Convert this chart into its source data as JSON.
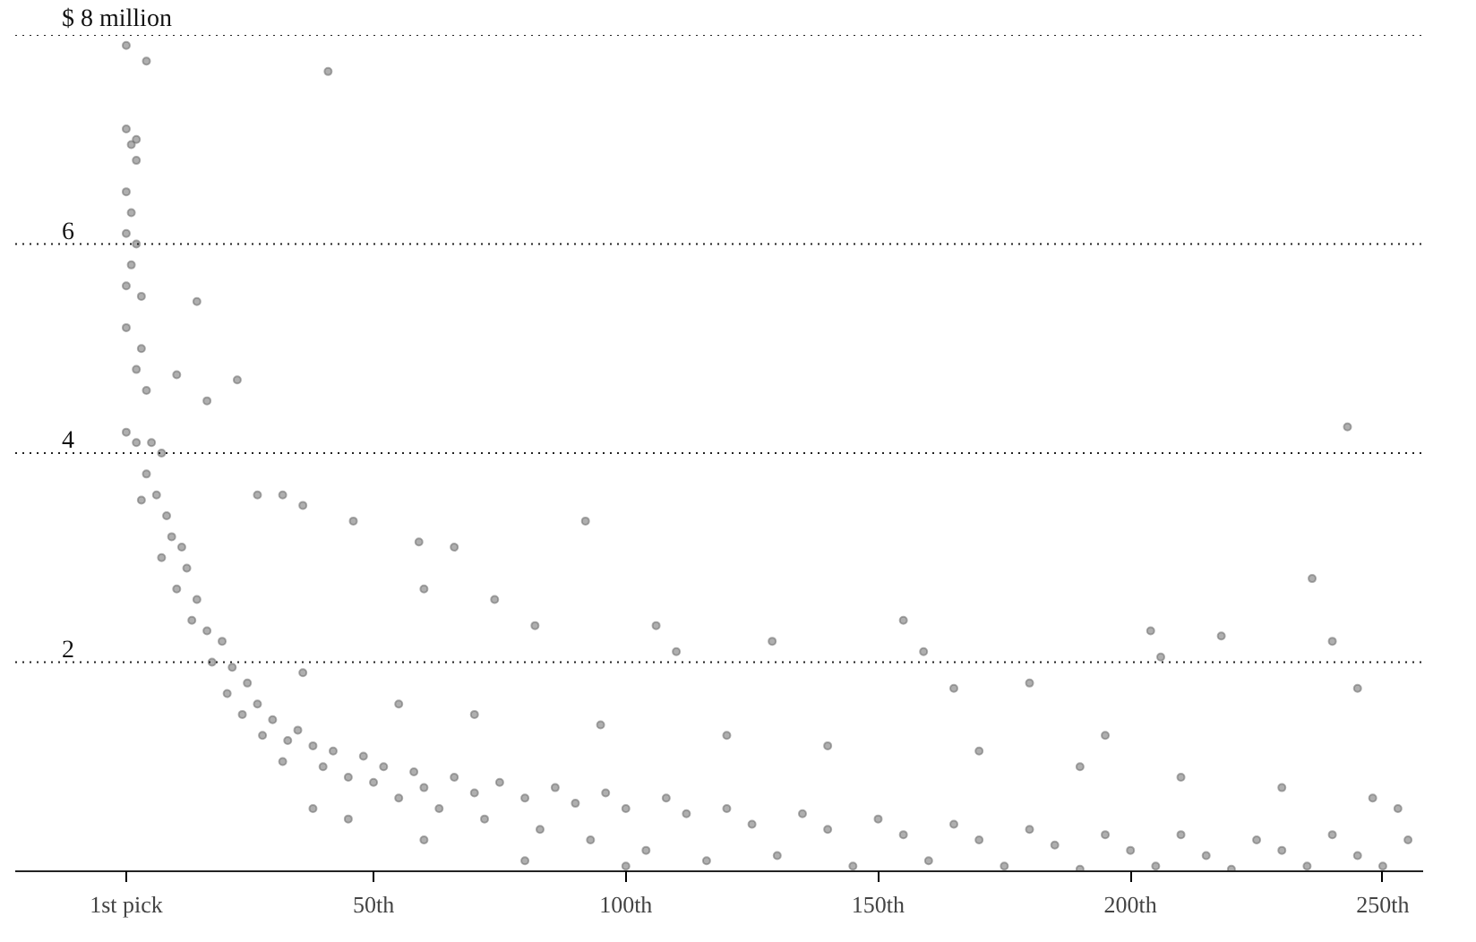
{
  "chart_data": {
    "type": "scatter",
    "color": "#6e6e6e",
    "marker": "circle",
    "grid": "y",
    "xlim": [
      -21,
      258
    ],
    "ylim": [
      0,
      8
    ],
    "xticks": [
      {
        "value": 1,
        "label": "1st pick"
      },
      {
        "value": 50,
        "label": "50th"
      },
      {
        "value": 100,
        "label": "100th"
      },
      {
        "value": 150,
        "label": "150th"
      },
      {
        "value": 200,
        "label": "200th"
      },
      {
        "value": 250,
        "label": "250th"
      }
    ],
    "yticks": [
      2,
      4,
      6,
      {
        "value": 8,
        "label": "$ 8 million"
      }
    ],
    "x": [
      1,
      5,
      41,
      1,
      2,
      3,
      3,
      1,
      2,
      1,
      3,
      2,
      1,
      4,
      15,
      1,
      4,
      3,
      5,
      11,
      23,
      17,
      1,
      3,
      6,
      8,
      5,
      7,
      4,
      9,
      10,
      12,
      8,
      13,
      11,
      15,
      14,
      17,
      20,
      18,
      22,
      25,
      21,
      27,
      24,
      30,
      28,
      33,
      35,
      32,
      38,
      40,
      42,
      45,
      48,
      50,
      52,
      55,
      58,
      60,
      63,
      66,
      70,
      72,
      75,
      80,
      83,
      86,
      90,
      93,
      96,
      100,
      104,
      108,
      112,
      116,
      120,
      125,
      130,
      135,
      140,
      145,
      150,
      155,
      160,
      165,
      170,
      175,
      180,
      185,
      190,
      195,
      200,
      205,
      210,
      215,
      220,
      225,
      230,
      235,
      240,
      245,
      250,
      255,
      253,
      248,
      27,
      32,
      46,
      59,
      92,
      36,
      66,
      60,
      74,
      82,
      106,
      110,
      129,
      155,
      159,
      204,
      206,
      218,
      236,
      240,
      245,
      243,
      36,
      55,
      70,
      95,
      120,
      140,
      170,
      190,
      210,
      230,
      60,
      45,
      38,
      80,
      100,
      180,
      165,
      195
    ],
    "values": [
      7.9,
      7.75,
      7.65,
      7.1,
      6.95,
      7.0,
      6.8,
      6.5,
      6.3,
      6.1,
      6.0,
      5.8,
      5.6,
      5.5,
      5.45,
      5.2,
      5.0,
      4.8,
      4.6,
      4.75,
      4.7,
      4.5,
      4.2,
      4.1,
      4.1,
      4.0,
      3.8,
      3.6,
      3.55,
      3.4,
      3.2,
      3.1,
      3.0,
      2.9,
      2.7,
      2.6,
      2.4,
      2.3,
      2.2,
      2.0,
      1.95,
      1.8,
      1.7,
      1.6,
      1.5,
      1.45,
      1.3,
      1.25,
      1.35,
      1.05,
      1.2,
      1.0,
      1.15,
      0.9,
      1.1,
      0.85,
      1.0,
      0.7,
      0.95,
      0.8,
      0.6,
      0.9,
      0.75,
      0.5,
      0.85,
      0.7,
      0.4,
      0.8,
      0.65,
      0.3,
      0.75,
      0.6,
      0.2,
      0.7,
      0.55,
      0.1,
      0.6,
      0.45,
      0.15,
      0.55,
      0.4,
      0.05,
      0.5,
      0.35,
      0.1,
      0.45,
      0.3,
      0.05,
      0.4,
      0.25,
      0.02,
      0.35,
      0.2,
      0.05,
      0.35,
      0.15,
      0.02,
      0.3,
      0.2,
      0.05,
      0.35,
      0.15,
      0.05,
      0.3,
      0.6,
      0.7,
      3.6,
      3.6,
      3.35,
      3.15,
      3.35,
      3.5,
      3.1,
      2.7,
      2.6,
      2.35,
      2.35,
      2.1,
      2.2,
      2.4,
      2.1,
      2.3,
      2.05,
      2.25,
      2.8,
      2.2,
      1.75,
      4.25,
      1.9,
      1.6,
      1.5,
      1.4,
      1.3,
      1.2,
      1.15,
      1.0,
      0.9,
      0.8,
      0.3,
      0.5,
      0.6,
      0.1,
      0.05,
      1.8,
      1.75,
      1.3
    ]
  }
}
